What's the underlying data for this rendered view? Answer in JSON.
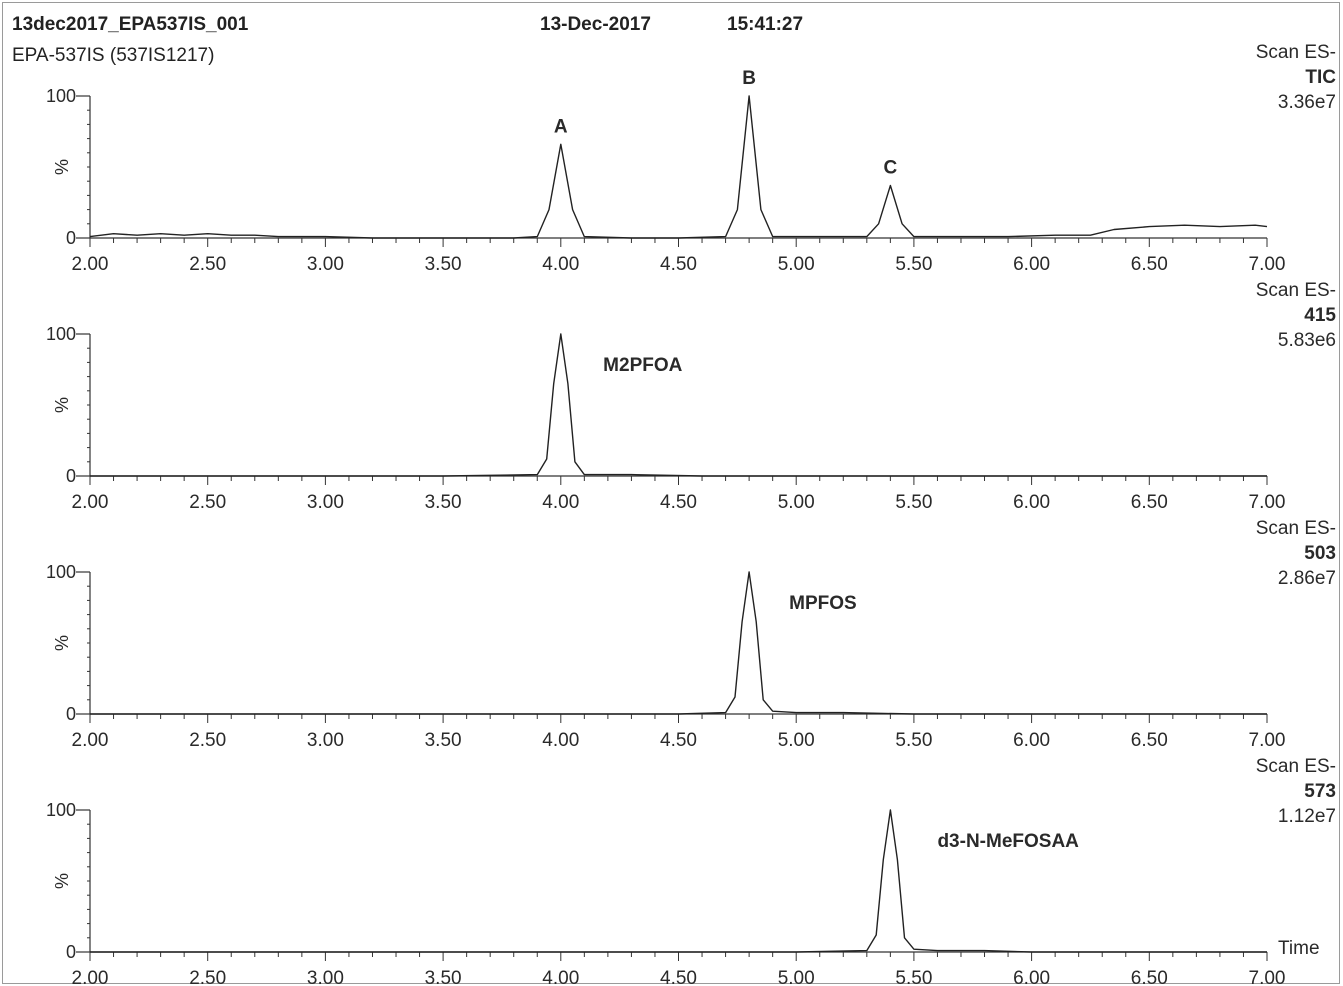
{
  "header": {
    "sample": "13dec2017_EPA537IS_001",
    "date": "13-Dec-2017",
    "time": "15:41:27",
    "method": "EPA-537IS (537IS1217)"
  },
  "axis": {
    "xmin": 2.0,
    "xmax": 7.0,
    "ticks": [
      "2.00",
      "2.50",
      "3.00",
      "3.50",
      "4.00",
      "4.50",
      "5.00",
      "5.50",
      "6.00",
      "6.50",
      "7.00"
    ],
    "y_top_label": "100",
    "y_zero_label": "0",
    "y_unit": "%",
    "time_label": "Time"
  },
  "chart_data": [
    {
      "type": "line",
      "scan": "Scan ES-",
      "trace": "TIC",
      "intensity": "3.36e7",
      "ylim": [
        0,
        100
      ],
      "x": [
        2.0,
        2.1,
        2.2,
        2.3,
        2.4,
        2.5,
        2.6,
        2.7,
        2.8,
        2.9,
        3.0,
        3.2,
        3.4,
        3.6,
        3.8,
        3.9,
        3.95,
        4.0,
        4.05,
        4.1,
        4.3,
        4.5,
        4.7,
        4.75,
        4.8,
        4.85,
        4.9,
        5.0,
        5.2,
        5.3,
        5.35,
        5.4,
        5.45,
        5.5,
        5.7,
        5.9,
        6.1,
        6.25,
        6.35,
        6.5,
        6.65,
        6.8,
        6.95,
        7.0
      ],
      "y": [
        1,
        3,
        2,
        3,
        2,
        3,
        2,
        2,
        1,
        1,
        1,
        0,
        0,
        0,
        0,
        1,
        20,
        66,
        20,
        1,
        0,
        0,
        1,
        20,
        100,
        20,
        1,
        1,
        1,
        1,
        10,
        37,
        10,
        1,
        1,
        1,
        2,
        2,
        6,
        8,
        9,
        8,
        9,
        8
      ],
      "peaks": [
        {
          "label": "A",
          "x": 4.0,
          "y": 66
        },
        {
          "label": "B",
          "x": 4.8,
          "y": 100
        },
        {
          "label": "C",
          "x": 5.4,
          "y": 37
        }
      ]
    },
    {
      "type": "line",
      "scan": "Scan ES-",
      "trace": "415",
      "intensity": "5.83e6",
      "ylim": [
        0,
        100
      ],
      "x": [
        2.0,
        2.5,
        3.0,
        3.5,
        3.9,
        3.94,
        3.97,
        4.0,
        4.03,
        4.06,
        4.1,
        4.3,
        4.6,
        5.0,
        5.5,
        6.0,
        6.5,
        7.0
      ],
      "y": [
        0,
        0,
        0,
        0,
        1,
        12,
        65,
        100,
        65,
        10,
        1,
        1,
        0,
        0,
        0,
        0,
        0,
        0
      ],
      "annotation": {
        "label": "M2PFOA",
        "x": 4.18,
        "y": 78
      }
    },
    {
      "type": "line",
      "scan": "Scan ES-",
      "trace": "503",
      "intensity": "2.86e7",
      "ylim": [
        0,
        100
      ],
      "x": [
        2.0,
        2.5,
        3.0,
        3.5,
        4.0,
        4.5,
        4.7,
        4.74,
        4.77,
        4.8,
        4.83,
        4.86,
        4.9,
        5.0,
        5.2,
        5.5,
        6.0,
        6.5,
        7.0
      ],
      "y": [
        0,
        0,
        0,
        0,
        0,
        0,
        1,
        12,
        65,
        100,
        65,
        10,
        2,
        1,
        1,
        0,
        0,
        0,
        0
      ],
      "annotation": {
        "label": "MPFOS",
        "x": 4.97,
        "y": 78
      }
    },
    {
      "type": "line",
      "scan": "Scan ES-",
      "trace": "573",
      "intensity": "1.12e7",
      "ylim": [
        0,
        100
      ],
      "x": [
        2.0,
        2.5,
        3.0,
        3.5,
        4.0,
        4.5,
        5.0,
        5.3,
        5.34,
        5.37,
        5.4,
        5.43,
        5.46,
        5.5,
        5.6,
        5.8,
        6.0,
        6.5,
        7.0
      ],
      "y": [
        0,
        0,
        0,
        0,
        0,
        0,
        0,
        1,
        12,
        65,
        100,
        65,
        10,
        2,
        1,
        1,
        0,
        0,
        0
      ],
      "annotation": {
        "label": "d3-N-MeFOSAA",
        "x": 5.6,
        "y": 78
      }
    }
  ]
}
